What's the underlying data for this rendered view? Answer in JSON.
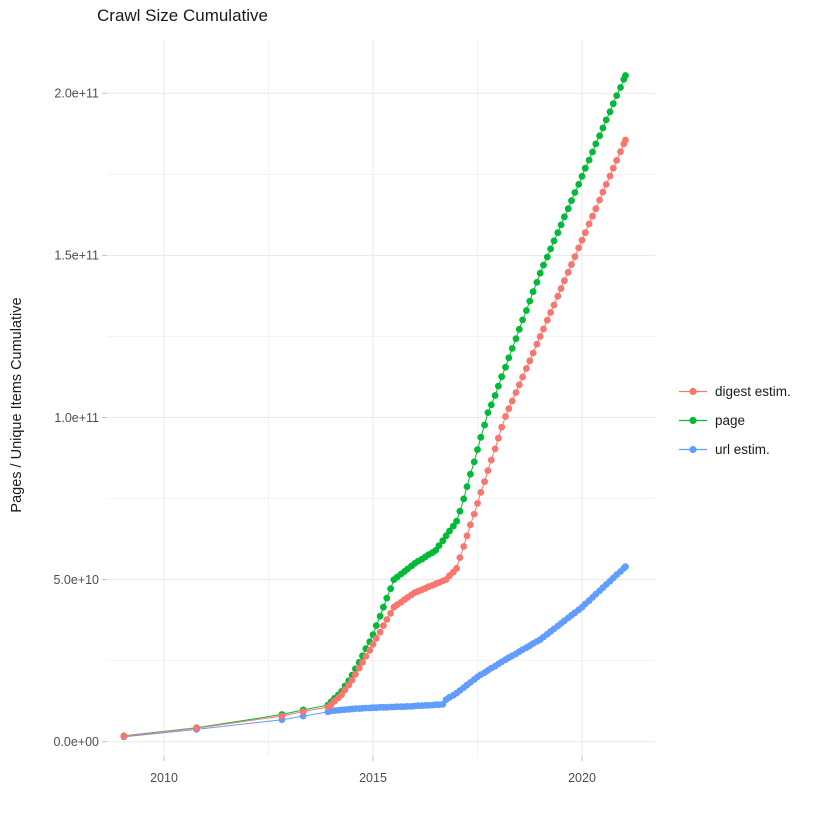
{
  "title": "Crawl Size Cumulative",
  "axes": {
    "y_label": "Pages / Unique Items Cumulative",
    "x_tick_labels": [
      "2010",
      "2015",
      "2020"
    ],
    "y_tick_labels": [
      "0.0e+00",
      "5.0e+10",
      "1.0e+11",
      "1.5e+11",
      "2.0e+11"
    ]
  },
  "legend": {
    "position": "right",
    "items": [
      {
        "label": "digest estim.",
        "color": "#F8766D"
      },
      {
        "label": "page",
        "color": "#00BA38"
      },
      {
        "label": "url estim.",
        "color": "#619CFF"
      }
    ]
  },
  "colors": {
    "background": "#ffffff",
    "grid_major": "#e8e8e8",
    "grid_minor": "#f3f3f3",
    "tick_mark": "#c2c2c2",
    "axis_text": "#4d4d4d",
    "title_text": "#1a1a1a"
  },
  "chart_data": {
    "type": "line",
    "title": "Crawl Size Cumulative",
    "xlabel": "",
    "ylabel": "Pages / Unique Items Cumulative",
    "marker": "point",
    "grid": true,
    "legend_position": "right",
    "value_unit": "items, values in billions (1e9)",
    "xlim": [
      2008.4,
      2021.7
    ],
    "ylim_e9": [
      -4.7,
      216
    ],
    "x_ticks": [
      2010,
      2015,
      2020
    ],
    "x_minor_ticks": [
      2012.5,
      2017.5
    ],
    "y_ticks_e9": [
      0,
      50,
      100,
      150,
      200
    ],
    "y_minor_ticks_e9": [
      25,
      75,
      125,
      175
    ],
    "y_tick_labels": [
      "0.0e+00",
      "5.0e+10",
      "1.0e+11",
      "1.5e+11",
      "2.0e+11"
    ],
    "series": [
      {
        "name": "digest estim.",
        "color": "#F8766D",
        "points": [
          [
            2009.04,
            1.7
          ],
          [
            2010.78,
            4.2
          ],
          [
            2012.82,
            7.9
          ],
          [
            2013.33,
            9.3
          ],
          [
            2013.92,
            10.7
          ],
          [
            2014.0,
            11.5
          ],
          [
            2014.08,
            12.5
          ],
          [
            2014.17,
            13.5
          ],
          [
            2014.25,
            14.5
          ],
          [
            2014.33,
            16
          ],
          [
            2014.42,
            17.5
          ],
          [
            2014.5,
            19
          ],
          [
            2014.58,
            20.8
          ],
          [
            2014.67,
            22.7
          ],
          [
            2014.75,
            24.5
          ],
          [
            2014.83,
            26.3
          ],
          [
            2014.92,
            28.2
          ],
          [
            2015.0,
            30
          ],
          [
            2015.08,
            31.9
          ],
          [
            2015.17,
            33.8
          ],
          [
            2015.25,
            35.8
          ],
          [
            2015.33,
            37.7
          ],
          [
            2015.42,
            39.6
          ],
          [
            2015.5,
            41.5
          ],
          [
            2015.58,
            42.3
          ],
          [
            2015.67,
            43
          ],
          [
            2015.75,
            43.8
          ],
          [
            2015.83,
            44.5
          ],
          [
            2015.92,
            45.3
          ],
          [
            2016.0,
            46
          ],
          [
            2016.08,
            46.4
          ],
          [
            2016.17,
            46.9
          ],
          [
            2016.25,
            47.3
          ],
          [
            2016.33,
            47.8
          ],
          [
            2016.42,
            48.2
          ],
          [
            2016.5,
            48.7
          ],
          [
            2016.58,
            49.1
          ],
          [
            2016.67,
            49.6
          ],
          [
            2016.75,
            50
          ],
          [
            2016.83,
            51.2
          ],
          [
            2016.92,
            52.3
          ],
          [
            2017.0,
            53.5
          ],
          [
            2017.08,
            56.8
          ],
          [
            2017.17,
            60.2
          ],
          [
            2017.25,
            63.5
          ],
          [
            2017.33,
            66.9
          ],
          [
            2017.42,
            70.2
          ],
          [
            2017.5,
            73.5
          ],
          [
            2017.58,
            76.9
          ],
          [
            2017.67,
            80.2
          ],
          [
            2017.75,
            83.6
          ],
          [
            2017.83,
            86.9
          ],
          [
            2017.92,
            90.3
          ],
          [
            2018.0,
            93.6
          ],
          [
            2018.08,
            97
          ],
          [
            2018.17,
            100.3
          ],
          [
            2018.25,
            102.7
          ],
          [
            2018.33,
            105.1
          ],
          [
            2018.42,
            107.7
          ],
          [
            2018.5,
            110.1
          ],
          [
            2018.58,
            112.5
          ],
          [
            2018.67,
            115.1
          ],
          [
            2018.75,
            117.5
          ],
          [
            2018.83,
            119.9
          ],
          [
            2018.92,
            122.6
          ],
          [
            2019.0,
            125
          ],
          [
            2019.08,
            127.3
          ],
          [
            2019.17,
            130
          ],
          [
            2019.25,
            132.4
          ],
          [
            2019.33,
            134.7
          ],
          [
            2019.42,
            137.4
          ],
          [
            2019.5,
            139.8
          ],
          [
            2019.58,
            142.2
          ],
          [
            2019.67,
            144.8
          ],
          [
            2019.75,
            147.2
          ],
          [
            2019.83,
            149.6
          ],
          [
            2019.92,
            152.3
          ],
          [
            2020.0,
            154.7
          ],
          [
            2020.08,
            157
          ],
          [
            2020.17,
            159.7
          ],
          [
            2020.25,
            162.1
          ],
          [
            2020.33,
            164.4
          ],
          [
            2020.42,
            167.1
          ],
          [
            2020.5,
            169.5
          ],
          [
            2020.58,
            171.9
          ],
          [
            2020.67,
            174.5
          ],
          [
            2020.75,
            176.9
          ],
          [
            2020.83,
            179.3
          ],
          [
            2020.92,
            182
          ],
          [
            2021.0,
            184.4
          ],
          [
            2021.04,
            185.6
          ]
        ]
      },
      {
        "name": "page",
        "color": "#00BA38",
        "points": [
          [
            2009.04,
            1.8
          ],
          [
            2010.78,
            4.3
          ],
          [
            2012.82,
            8.4
          ],
          [
            2013.33,
            9.8
          ],
          [
            2013.92,
            11.3
          ],
          [
            2014.0,
            12.3
          ],
          [
            2014.08,
            13.4
          ],
          [
            2014.17,
            14.4
          ],
          [
            2014.25,
            15.5
          ],
          [
            2014.33,
            17.2
          ],
          [
            2014.42,
            18.8
          ],
          [
            2014.5,
            20.5
          ],
          [
            2014.58,
            22.5
          ],
          [
            2014.67,
            24.5
          ],
          [
            2014.75,
            26.5
          ],
          [
            2014.83,
            28.7
          ],
          [
            2014.92,
            30.8
          ],
          [
            2015.0,
            33
          ],
          [
            2015.08,
            35.8
          ],
          [
            2015.17,
            38.7
          ],
          [
            2015.25,
            41.5
          ],
          [
            2015.33,
            44.3
          ],
          [
            2015.42,
            47.2
          ],
          [
            2015.5,
            50
          ],
          [
            2015.58,
            50.8
          ],
          [
            2015.67,
            51.7
          ],
          [
            2015.75,
            52.5
          ],
          [
            2015.83,
            53.3
          ],
          [
            2015.92,
            54.2
          ],
          [
            2016.0,
            55
          ],
          [
            2016.08,
            55.7
          ],
          [
            2016.17,
            56.3
          ],
          [
            2016.25,
            57
          ],
          [
            2016.33,
            57.7
          ],
          [
            2016.42,
            58.3
          ],
          [
            2016.5,
            59
          ],
          [
            2016.58,
            60.5
          ],
          [
            2016.67,
            62
          ],
          [
            2016.75,
            63.5
          ],
          [
            2016.83,
            65
          ],
          [
            2016.92,
            66.5
          ],
          [
            2017.0,
            68
          ],
          [
            2017.08,
            71.1
          ],
          [
            2017.17,
            74.9
          ],
          [
            2017.25,
            78.7
          ],
          [
            2017.33,
            82.5
          ],
          [
            2017.42,
            86.3
          ],
          [
            2017.5,
            90.1
          ],
          [
            2017.58,
            93.9
          ],
          [
            2017.67,
            97.7
          ],
          [
            2017.75,
            101.5
          ],
          [
            2017.83,
            103.9
          ],
          [
            2017.92,
            106.8
          ],
          [
            2018.0,
            109.7
          ],
          [
            2018.08,
            112.6
          ],
          [
            2018.17,
            115.5
          ],
          [
            2018.25,
            118.4
          ],
          [
            2018.33,
            121.3
          ],
          [
            2018.42,
            124.3
          ],
          [
            2018.5,
            127.2
          ],
          [
            2018.58,
            130.1
          ],
          [
            2018.67,
            133
          ],
          [
            2018.75,
            135.9
          ],
          [
            2018.83,
            138.8
          ],
          [
            2018.92,
            141.7
          ],
          [
            2019.0,
            144.5
          ],
          [
            2019.08,
            147
          ],
          [
            2019.17,
            149.5
          ],
          [
            2019.25,
            152
          ],
          [
            2019.33,
            154.5
          ],
          [
            2019.42,
            157
          ],
          [
            2019.5,
            159.4
          ],
          [
            2019.58,
            161.9
          ],
          [
            2019.67,
            164.4
          ],
          [
            2019.75,
            166.9
          ],
          [
            2019.83,
            169.4
          ],
          [
            2019.92,
            171.9
          ],
          [
            2020.0,
            174.4
          ],
          [
            2020.08,
            176.9
          ],
          [
            2020.17,
            179.4
          ],
          [
            2020.25,
            181.9
          ],
          [
            2020.33,
            184.4
          ],
          [
            2020.42,
            186.9
          ],
          [
            2020.5,
            189.3
          ],
          [
            2020.58,
            191.8
          ],
          [
            2020.67,
            194.3
          ],
          [
            2020.75,
            196.8
          ],
          [
            2020.83,
            199.3
          ],
          [
            2020.92,
            201.8
          ],
          [
            2021.0,
            204.3
          ],
          [
            2021.04,
            205.5
          ]
        ]
      },
      {
        "name": "url estim.",
        "color": "#619CFF",
        "points": [
          [
            2009.04,
            1.5
          ],
          [
            2010.78,
            3.8
          ],
          [
            2012.82,
            6.8
          ],
          [
            2013.33,
            7.9
          ],
          [
            2013.92,
            9.2
          ],
          [
            2014.0,
            9.5
          ],
          [
            2014.08,
            9.6
          ],
          [
            2014.17,
            9.7
          ],
          [
            2014.25,
            9.8
          ],
          [
            2014.33,
            9.9
          ],
          [
            2014.42,
            10
          ],
          [
            2014.5,
            10.1
          ],
          [
            2014.58,
            10.2
          ],
          [
            2014.67,
            10.2
          ],
          [
            2014.75,
            10.3
          ],
          [
            2014.83,
            10.4
          ],
          [
            2014.92,
            10.4
          ],
          [
            2015.0,
            10.5
          ],
          [
            2015.08,
            10.5
          ],
          [
            2015.17,
            10.6
          ],
          [
            2015.25,
            10.6
          ],
          [
            2015.33,
            10.6
          ],
          [
            2015.42,
            10.7
          ],
          [
            2015.5,
            10.7
          ],
          [
            2015.58,
            10.8
          ],
          [
            2015.67,
            10.8
          ],
          [
            2015.75,
            10.8
          ],
          [
            2015.83,
            10.9
          ],
          [
            2015.92,
            10.9
          ],
          [
            2016.0,
            11
          ],
          [
            2016.08,
            11.1
          ],
          [
            2016.17,
            11.1
          ],
          [
            2016.25,
            11.2
          ],
          [
            2016.33,
            11.2
          ],
          [
            2016.42,
            11.3
          ],
          [
            2016.5,
            11.4
          ],
          [
            2016.58,
            11.4
          ],
          [
            2016.67,
            11.5
          ],
          [
            2016.75,
            13
          ],
          [
            2016.83,
            13.7
          ],
          [
            2016.92,
            14.3
          ],
          [
            2017.0,
            15
          ],
          [
            2017.08,
            15.8
          ],
          [
            2017.17,
            16.7
          ],
          [
            2017.25,
            17.5
          ],
          [
            2017.33,
            18.3
          ],
          [
            2017.42,
            19.2
          ],
          [
            2017.5,
            20
          ],
          [
            2017.58,
            20.7
          ],
          [
            2017.67,
            21.3
          ],
          [
            2017.75,
            22
          ],
          [
            2017.83,
            22.7
          ],
          [
            2017.92,
            23.3
          ],
          [
            2018.0,
            24
          ],
          [
            2018.08,
            24.6
          ],
          [
            2018.17,
            25.3
          ],
          [
            2018.25,
            25.9
          ],
          [
            2018.33,
            26.5
          ],
          [
            2018.42,
            27.1
          ],
          [
            2018.5,
            27.8
          ],
          [
            2018.58,
            28.4
          ],
          [
            2018.67,
            29
          ],
          [
            2018.75,
            29.6
          ],
          [
            2018.83,
            30.3
          ],
          [
            2018.92,
            30.9
          ],
          [
            2019.0,
            31.5
          ],
          [
            2019.08,
            32.3
          ],
          [
            2019.17,
            33.2
          ],
          [
            2019.25,
            34
          ],
          [
            2019.33,
            34.8
          ],
          [
            2019.42,
            35.7
          ],
          [
            2019.5,
            36.5
          ],
          [
            2019.58,
            37.3
          ],
          [
            2019.67,
            38.2
          ],
          [
            2019.75,
            39
          ],
          [
            2019.83,
            39.8
          ],
          [
            2019.92,
            40.7
          ],
          [
            2020.0,
            41.5
          ],
          [
            2020.08,
            42.5
          ],
          [
            2020.17,
            43.5
          ],
          [
            2020.25,
            44.5
          ],
          [
            2020.33,
            45.5
          ],
          [
            2020.42,
            46.5
          ],
          [
            2020.5,
            47.5
          ],
          [
            2020.58,
            48.5
          ],
          [
            2020.67,
            49.5
          ],
          [
            2020.75,
            50.5
          ],
          [
            2020.83,
            51.5
          ],
          [
            2020.92,
            52.5
          ],
          [
            2021.0,
            53.5
          ],
          [
            2021.04,
            54
          ]
        ]
      }
    ]
  }
}
